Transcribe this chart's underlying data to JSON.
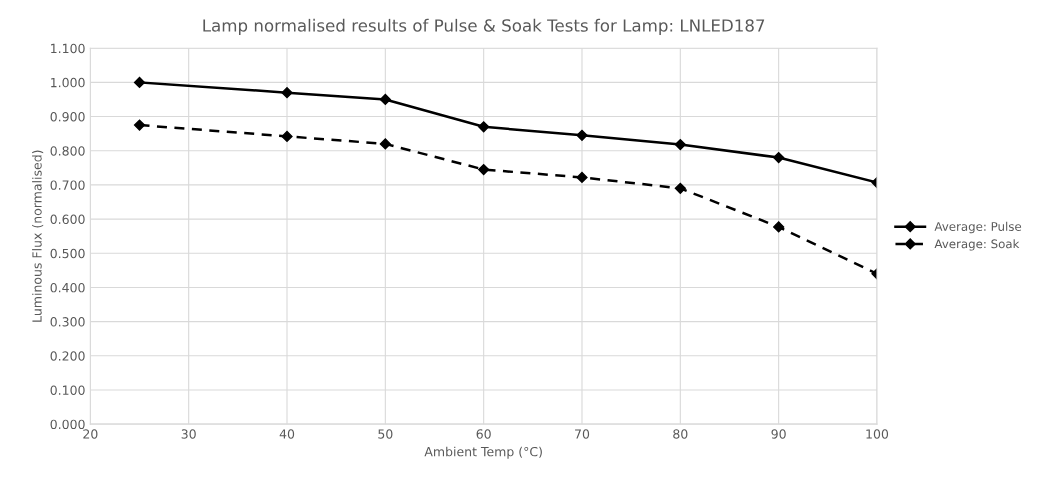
{
  "chart_data": {
    "type": "line",
    "title": "Lamp normalised results of Pulse & Soak Tests for Lamp: LNLED187",
    "xlabel": "Ambient Temp (°C)",
    "ylabel": "Luminous Flux (normalised)",
    "x": [
      25,
      40,
      50,
      60,
      70,
      80,
      90,
      100
    ],
    "series": [
      {
        "name": "Average: Pulse",
        "color": "#000000",
        "line_style": "solid",
        "values": [
          1.0,
          0.97,
          0.95,
          0.87,
          0.845,
          0.818,
          0.78,
          0.707
        ]
      },
      {
        "name": "Average: Soak",
        "color": "#000000",
        "line_style": "dashed",
        "values": [
          0.875,
          0.842,
          0.82,
          0.745,
          0.722,
          0.69,
          0.577,
          0.44
        ]
      }
    ],
    "xlim": [
      20,
      100
    ],
    "xticks": [
      20,
      30,
      40,
      50,
      60,
      70,
      80,
      90,
      100
    ],
    "ylim": [
      0,
      1.1
    ],
    "yticks": [
      {
        "value": 0,
        "label": "0.000"
      },
      {
        "value": 0.1,
        "label": "0.100"
      },
      {
        "value": 0.2,
        "label": "0.200"
      },
      {
        "value": 0.3,
        "label": "0.300"
      },
      {
        "value": 0.4,
        "label": "0.400"
      },
      {
        "value": 0.5,
        "label": "0.500"
      },
      {
        "value": 0.6,
        "label": "0.600"
      },
      {
        "value": 0.7,
        "label": "0.700"
      },
      {
        "value": 0.8,
        "label": "0.800"
      },
      {
        "value": 0.9,
        "label": "0.900"
      },
      {
        "value": 1.0,
        "label": "1.000"
      },
      {
        "value": 1.1,
        "label": "1.100"
      }
    ],
    "grid": true,
    "legend": "right",
    "marker": "diamond"
  }
}
